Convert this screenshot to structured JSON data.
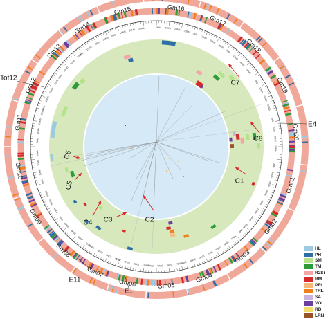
{
  "chromosomes": [
    "Gm01",
    "Gm02",
    "Gm03",
    "Gm04",
    "Gm05",
    "Gm06",
    "Gm07",
    "Gm08",
    "Gm09",
    "Gm10",
    "Gm11",
    "Gm12",
    "Gm13",
    "Gm14",
    "Gm15",
    "Gm16",
    "Gm17",
    "Gm18",
    "Gm19",
    "Gm20"
  ],
  "tick_labels": [
    "0Mb",
    "10Mb",
    "20Mb",
    "30Mb",
    "40Mb",
    "50Mb"
  ],
  "loci": [
    {
      "label": "Tof12",
      "chr": "Gm12"
    },
    {
      "label": "E4",
      "chr": "Gm20"
    },
    {
      "label": "E11",
      "chr": "Gm07"
    },
    {
      "label": "E1",
      "chr": "Gm06"
    }
  ],
  "clusters": [
    "C1",
    "C2",
    "C3",
    "C4",
    "C5",
    "C6",
    "C7",
    "C8"
  ],
  "traits": [
    {
      "code": "HL",
      "color": "#9ecae1"
    },
    {
      "code": "PH",
      "color": "#2f6fa5"
    },
    {
      "code": "SM",
      "color": "#b5e38a"
    },
    {
      "code": "TM",
      "color": "#2f9c3a"
    },
    {
      "code": "R2Si",
      "color": "#f4a6a6"
    },
    {
      "code": "RM",
      "color": "#d62a2a"
    },
    {
      "code": "PRL",
      "color": "#f7b97a"
    },
    {
      "code": "TRL",
      "color": "#f07f1c"
    },
    {
      "code": "SA",
      "color": "#c9b3dd"
    },
    {
      "code": "VOL",
      "color": "#6a3fa0"
    },
    {
      "code": "RD",
      "color": "#f2dc6b"
    },
    {
      "code": "LRN",
      "color": "#9a5227"
    }
  ],
  "colors": {
    "ideogram": "#efa89a",
    "qtl_zone": "#d7e8bd",
    "center": "#d6e9f6"
  }
}
